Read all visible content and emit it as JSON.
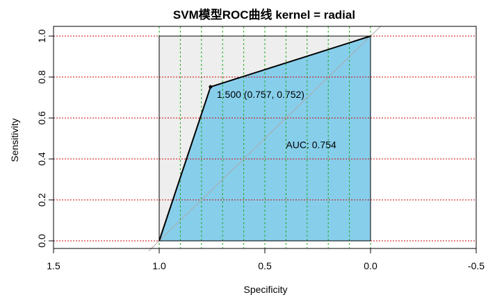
{
  "chart_data": {
    "type": "area",
    "title": "SVM模型ROC曲线 kernel = radial",
    "xlabel": "Specificity",
    "ylabel": "Sensitivity",
    "x_reversed": true,
    "xlim": [
      1.5,
      -0.5
    ],
    "ylim": [
      0.0,
      1.0
    ],
    "x_ticks": [
      1.5,
      1.0,
      0.5,
      0.0,
      -0.5
    ],
    "x_tick_labels": [
      "1.5",
      "1.0",
      "0.5",
      "0.0",
      "-0.5"
    ],
    "y_ticks": [
      0.0,
      0.2,
      0.4,
      0.6,
      0.8,
      1.0
    ],
    "y_tick_labels": [
      "0.0",
      "0.2",
      "0.4",
      "0.6",
      "0.8",
      "1.0"
    ],
    "grid": {
      "horizontal": [
        0.0,
        0.2,
        0.4,
        0.6,
        0.8,
        1.0
      ],
      "vertical": [
        1.0,
        0.9,
        0.8,
        0.7,
        0.6,
        0.5,
        0.4,
        0.3,
        0.2,
        0.1,
        0.0
      ]
    },
    "series": [
      {
        "points": [
          {
            "specificity": 1.0,
            "sensitivity": 0.0
          },
          {
            "specificity": 0.757,
            "sensitivity": 0.752
          },
          {
            "specificity": 0.0,
            "sensitivity": 1.0
          }
        ]
      }
    ],
    "threshold_point": {
      "specificity": 0.757,
      "sensitivity": 0.752,
      "label": "1.500 (0.757, 0.752)"
    },
    "auc_label": "AUC: 0.754",
    "auc_label_position": {
      "specificity": 0.4,
      "sensitivity": 0.47
    },
    "colors": {
      "auc_fill": "#87CEEB",
      "max_fill": "#EEEEEE",
      "curve": "#000000",
      "h_grid": "#CC0000",
      "v_grid": "#22AA22",
      "diagonal": "#AAAAAA"
    }
  }
}
